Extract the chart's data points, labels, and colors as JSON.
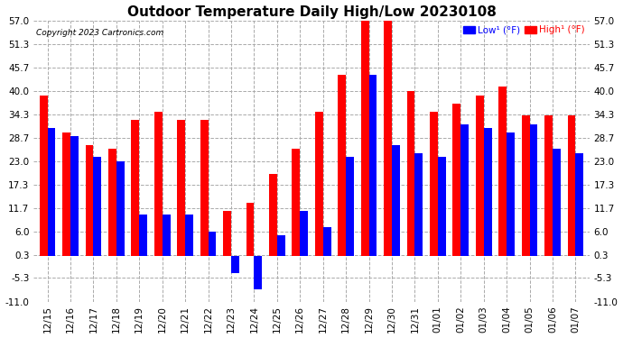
{
  "title": "Outdoor Temperature Daily High/Low 20230108",
  "copyright": "Copyright 2023 Cartronics.com",
  "dates": [
    "12/15",
    "12/16",
    "12/17",
    "12/18",
    "12/19",
    "12/20",
    "12/21",
    "12/22",
    "12/23",
    "12/24",
    "12/25",
    "12/26",
    "12/27",
    "12/28",
    "12/29",
    "12/30",
    "12/31",
    "01/01",
    "01/02",
    "01/03",
    "01/04",
    "01/05",
    "01/06",
    "01/07"
  ],
  "high": [
    39.0,
    30.0,
    27.0,
    26.0,
    33.0,
    35.0,
    33.0,
    33.0,
    11.0,
    13.0,
    20.0,
    26.0,
    35.0,
    44.0,
    57.0,
    57.0,
    40.0,
    35.0,
    37.0,
    39.0,
    41.0,
    34.0,
    34.0,
    34.0
  ],
  "low": [
    31.0,
    29.0,
    24.0,
    23.0,
    10.0,
    10.0,
    10.0,
    6.0,
    -4.0,
    -8.0,
    5.0,
    11.0,
    7.0,
    24.0,
    44.0,
    27.0,
    25.0,
    24.0,
    32.0,
    31.0,
    30.0,
    32.0,
    26.0,
    25.0
  ],
  "yticks": [
    57.0,
    51.3,
    45.7,
    40.0,
    34.3,
    28.7,
    23.0,
    17.3,
    11.7,
    6.0,
    0.3,
    -5.3,
    -11.0
  ],
  "ymin": -11.0,
  "ymax": 57.0,
  "high_color": "#ff0000",
  "low_color": "#0000ff",
  "bg_color": "#ffffff",
  "grid_color": "#aaaaaa",
  "title_fontsize": 11,
  "tick_fontsize": 7.5,
  "bar_width": 0.35
}
